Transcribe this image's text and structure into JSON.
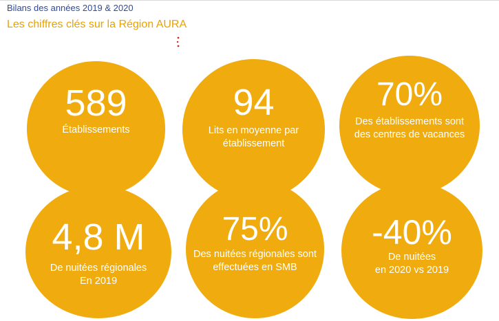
{
  "header": {
    "title": "Bilans des années 2019 & 2020",
    "subtitle": "Les chiffres clés sur la Région AURA"
  },
  "colors": {
    "circle": "#f0ab0f",
    "title": "#2e4a9a",
    "subtitle": "#e8a300"
  },
  "stats": [
    {
      "value": "589",
      "lines": [
        "Établissements"
      ]
    },
    {
      "value": "94",
      "lines": [
        "Lits en moyenne par",
        "établissement"
      ]
    },
    {
      "value": "70%",
      "lines": [
        "Des établissements sont",
        "des centres de vacances"
      ]
    },
    {
      "value": "4,8 M",
      "lines": [
        "De nuitées régionales",
        "En 2019"
      ]
    },
    {
      "value": "75%",
      "lines": [
        "Des nuitées régionales sont",
        "effectuées en SMB"
      ]
    },
    {
      "value": "-40%",
      "lines": [
        "De nuitées",
        "en 2020 vs 2019"
      ]
    }
  ]
}
